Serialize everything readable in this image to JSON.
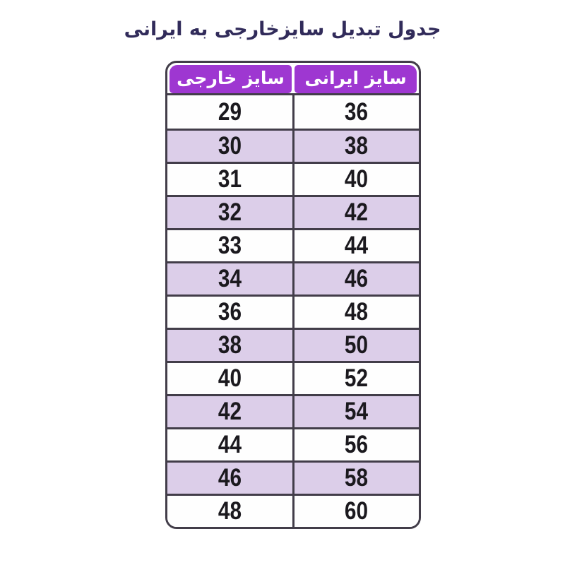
{
  "title": "جدول تبدیل سایزخارجی به ایرانی",
  "chart_data": {
    "type": "table",
    "title": "جدول تبدیل سایزخارجی به ایرانی",
    "columns": [
      "سایز خارجی",
      "سایز ایرانی"
    ],
    "rows": [
      [
        "29",
        "36"
      ],
      [
        "30",
        "38"
      ],
      [
        "31",
        "40"
      ],
      [
        "32",
        "42"
      ],
      [
        "33",
        "44"
      ],
      [
        "34",
        "46"
      ],
      [
        "36",
        "48"
      ],
      [
        "38",
        "50"
      ],
      [
        "40",
        "52"
      ],
      [
        "42",
        "54"
      ],
      [
        "44",
        "56"
      ],
      [
        "46",
        "58"
      ],
      [
        "48",
        "60"
      ]
    ],
    "layout": {
      "column_order": "foreign size in left column, Iranian size in right column",
      "row_striping": "odd rows white, even rows lavender"
    }
  },
  "colors": {
    "page_bg": "#ffffff",
    "title_color": "#312b5a",
    "header_bg": "#9e37d1",
    "header_text": "#ffffff",
    "border": "#423d49",
    "alt_row_bg": "#dccee9",
    "value_color": "#1b191e"
  }
}
